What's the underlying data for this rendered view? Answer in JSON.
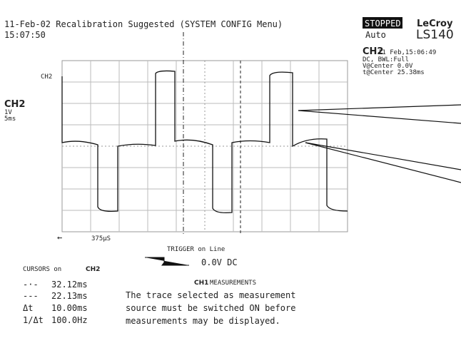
{
  "header": {
    "line1": "11-Feb-02 Recalibration Suggested (SYSTEM CONFIG Menu)",
    "line2": "15:07:50"
  },
  "status": {
    "state": "STOPPED",
    "mode": "Auto"
  },
  "brand": {
    "name": "LeCroy",
    "model": "LS140"
  },
  "trace_info": {
    "channel": "CH2",
    "timestamp": "11 Feb,15:06:49",
    "coupling": "DC, BWL:Full",
    "v_center": "V@Center 0.0V",
    "t_center": "t@Center 25.38ms"
  },
  "channel_label": {
    "name": "CH2",
    "volts": "1V",
    "time": "5ms"
  },
  "trace_marker": "CH2",
  "timebase": {
    "arrow": "←",
    "value": "375μS"
  },
  "trigger": {
    "title": "TRIGGER on Line",
    "level": "0.0V DC"
  },
  "cursors": {
    "title": "CURSORS on",
    "channel": "CH2",
    "rows": [
      [
        "-·-",
        "32.12ms"
      ],
      [
        "---",
        "22.13ms"
      ],
      [
        "Δt",
        "10.00ms"
      ],
      [
        "1/Δt",
        "100.0Hz"
      ]
    ]
  },
  "measurements": {
    "channel": "CH1",
    "title": "MEASUREMENTS",
    "message": [
      "The trace selected as measurement",
      "source must be switched ON before",
      "measurements may be displayed."
    ]
  }
}
